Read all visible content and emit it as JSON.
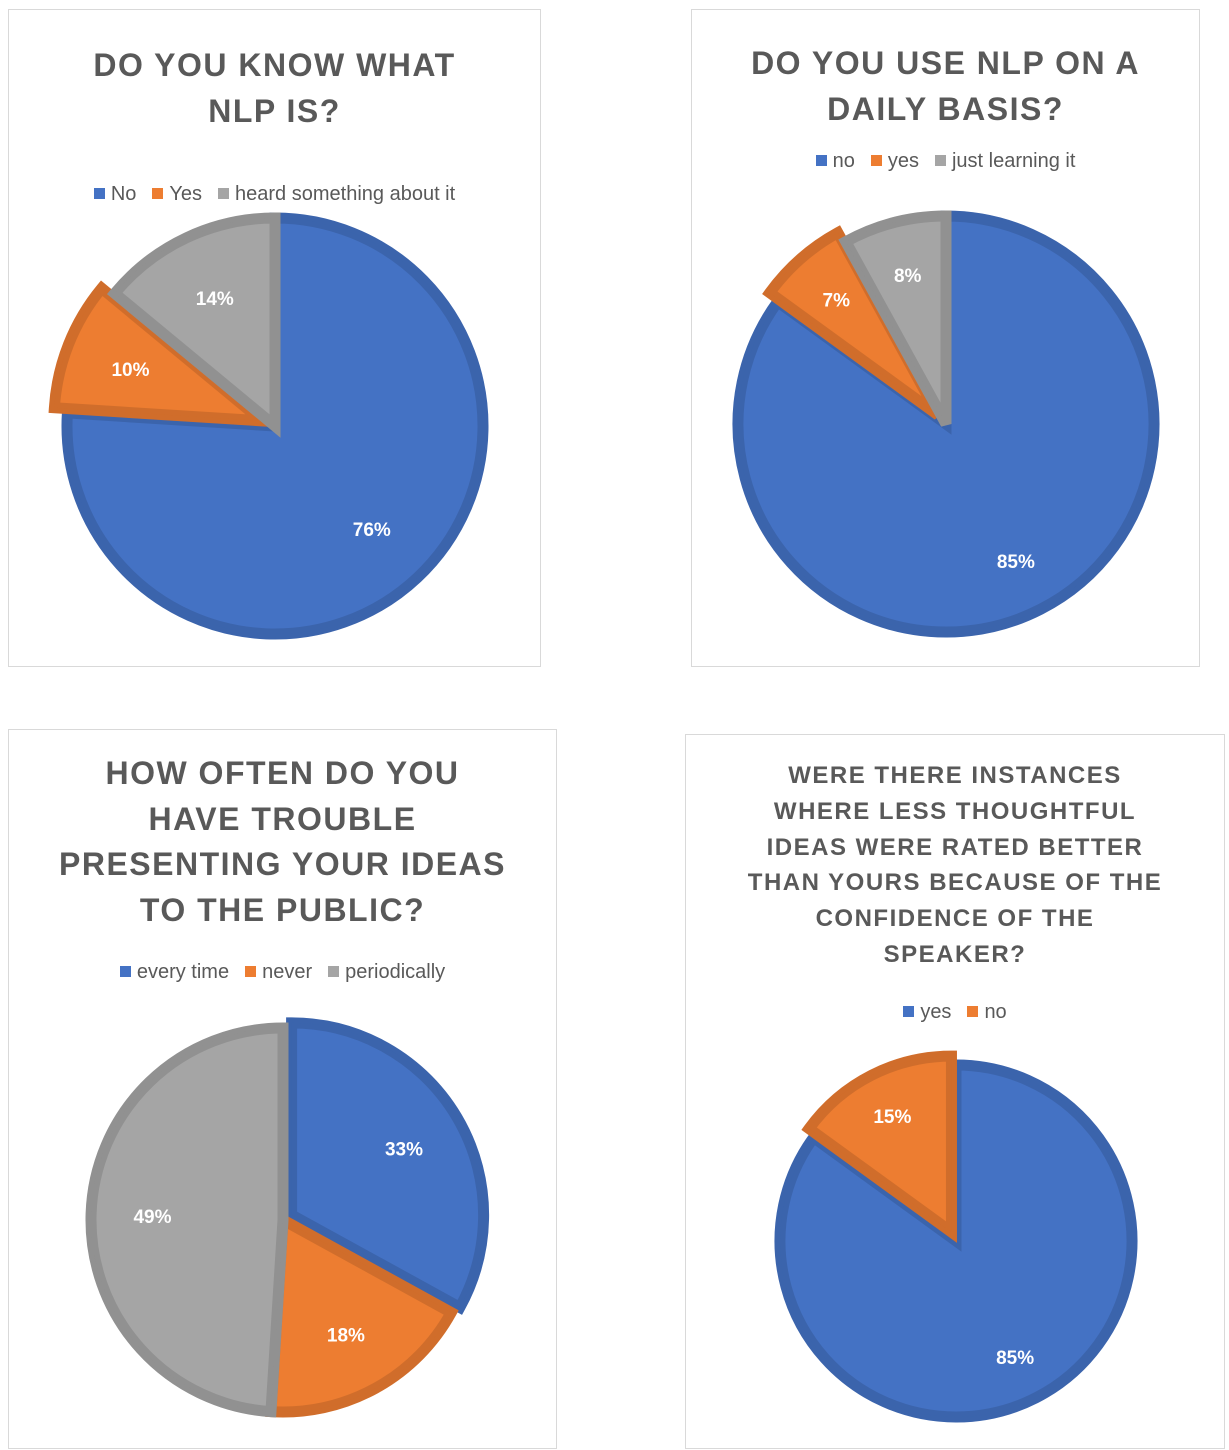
{
  "colors": {
    "blue": "#4472c4",
    "orange": "#ed7d31",
    "gray": "#a5a5a5"
  },
  "chart_data": [
    {
      "type": "pie",
      "title": "DO YOU KNOW WHAT\nNLP IS?",
      "categories": [
        "No",
        "Yes",
        "heard something about it"
      ],
      "values": [
        76,
        10,
        14
      ],
      "labels": [
        "76%",
        "10%",
        "14%"
      ],
      "colors": [
        "#4472c4",
        "#ed7d31",
        "#a5a5a5"
      ],
      "legend": "top",
      "exploded": "Yes"
    },
    {
      "type": "pie",
      "title": "DO YOU USE NLP ON A\nDAILY BASIS?",
      "categories": [
        "no",
        "yes",
        "just learning it"
      ],
      "values": [
        85,
        7,
        8
      ],
      "labels": [
        "85%",
        "7%",
        "8%"
      ],
      "colors": [
        "#4472c4",
        "#ed7d31",
        "#a5a5a5"
      ],
      "legend": "top",
      "exploded": "yes"
    },
    {
      "type": "pie",
      "title": "HOW OFTEN DO YOU\nHAVE TROUBLE\nPRESENTING YOUR IDEAS\nTO THE PUBLIC?",
      "categories": [
        "every time",
        "never",
        "periodically"
      ],
      "values": [
        33,
        18,
        49
      ],
      "labels": [
        "33%",
        "18%",
        "49%"
      ],
      "colors": [
        "#4472c4",
        "#ed7d31",
        "#a5a5a5"
      ],
      "legend": "top",
      "exploded": "every time"
    },
    {
      "type": "pie",
      "title": "WERE THERE INSTANCES\nWHERE LESS THOUGHTFUL\nIDEAS WERE RATED BETTER\nTHAN YOURS BECAUSE OF THE\nCONFIDENCE OF THE\nSPEAKER?",
      "categories": [
        "yes",
        "no"
      ],
      "values": [
        85,
        15
      ],
      "labels": [
        "85%",
        "15%"
      ],
      "colors": [
        "#4472c4",
        "#ed7d31"
      ],
      "legend": "top",
      "exploded": "no"
    }
  ]
}
